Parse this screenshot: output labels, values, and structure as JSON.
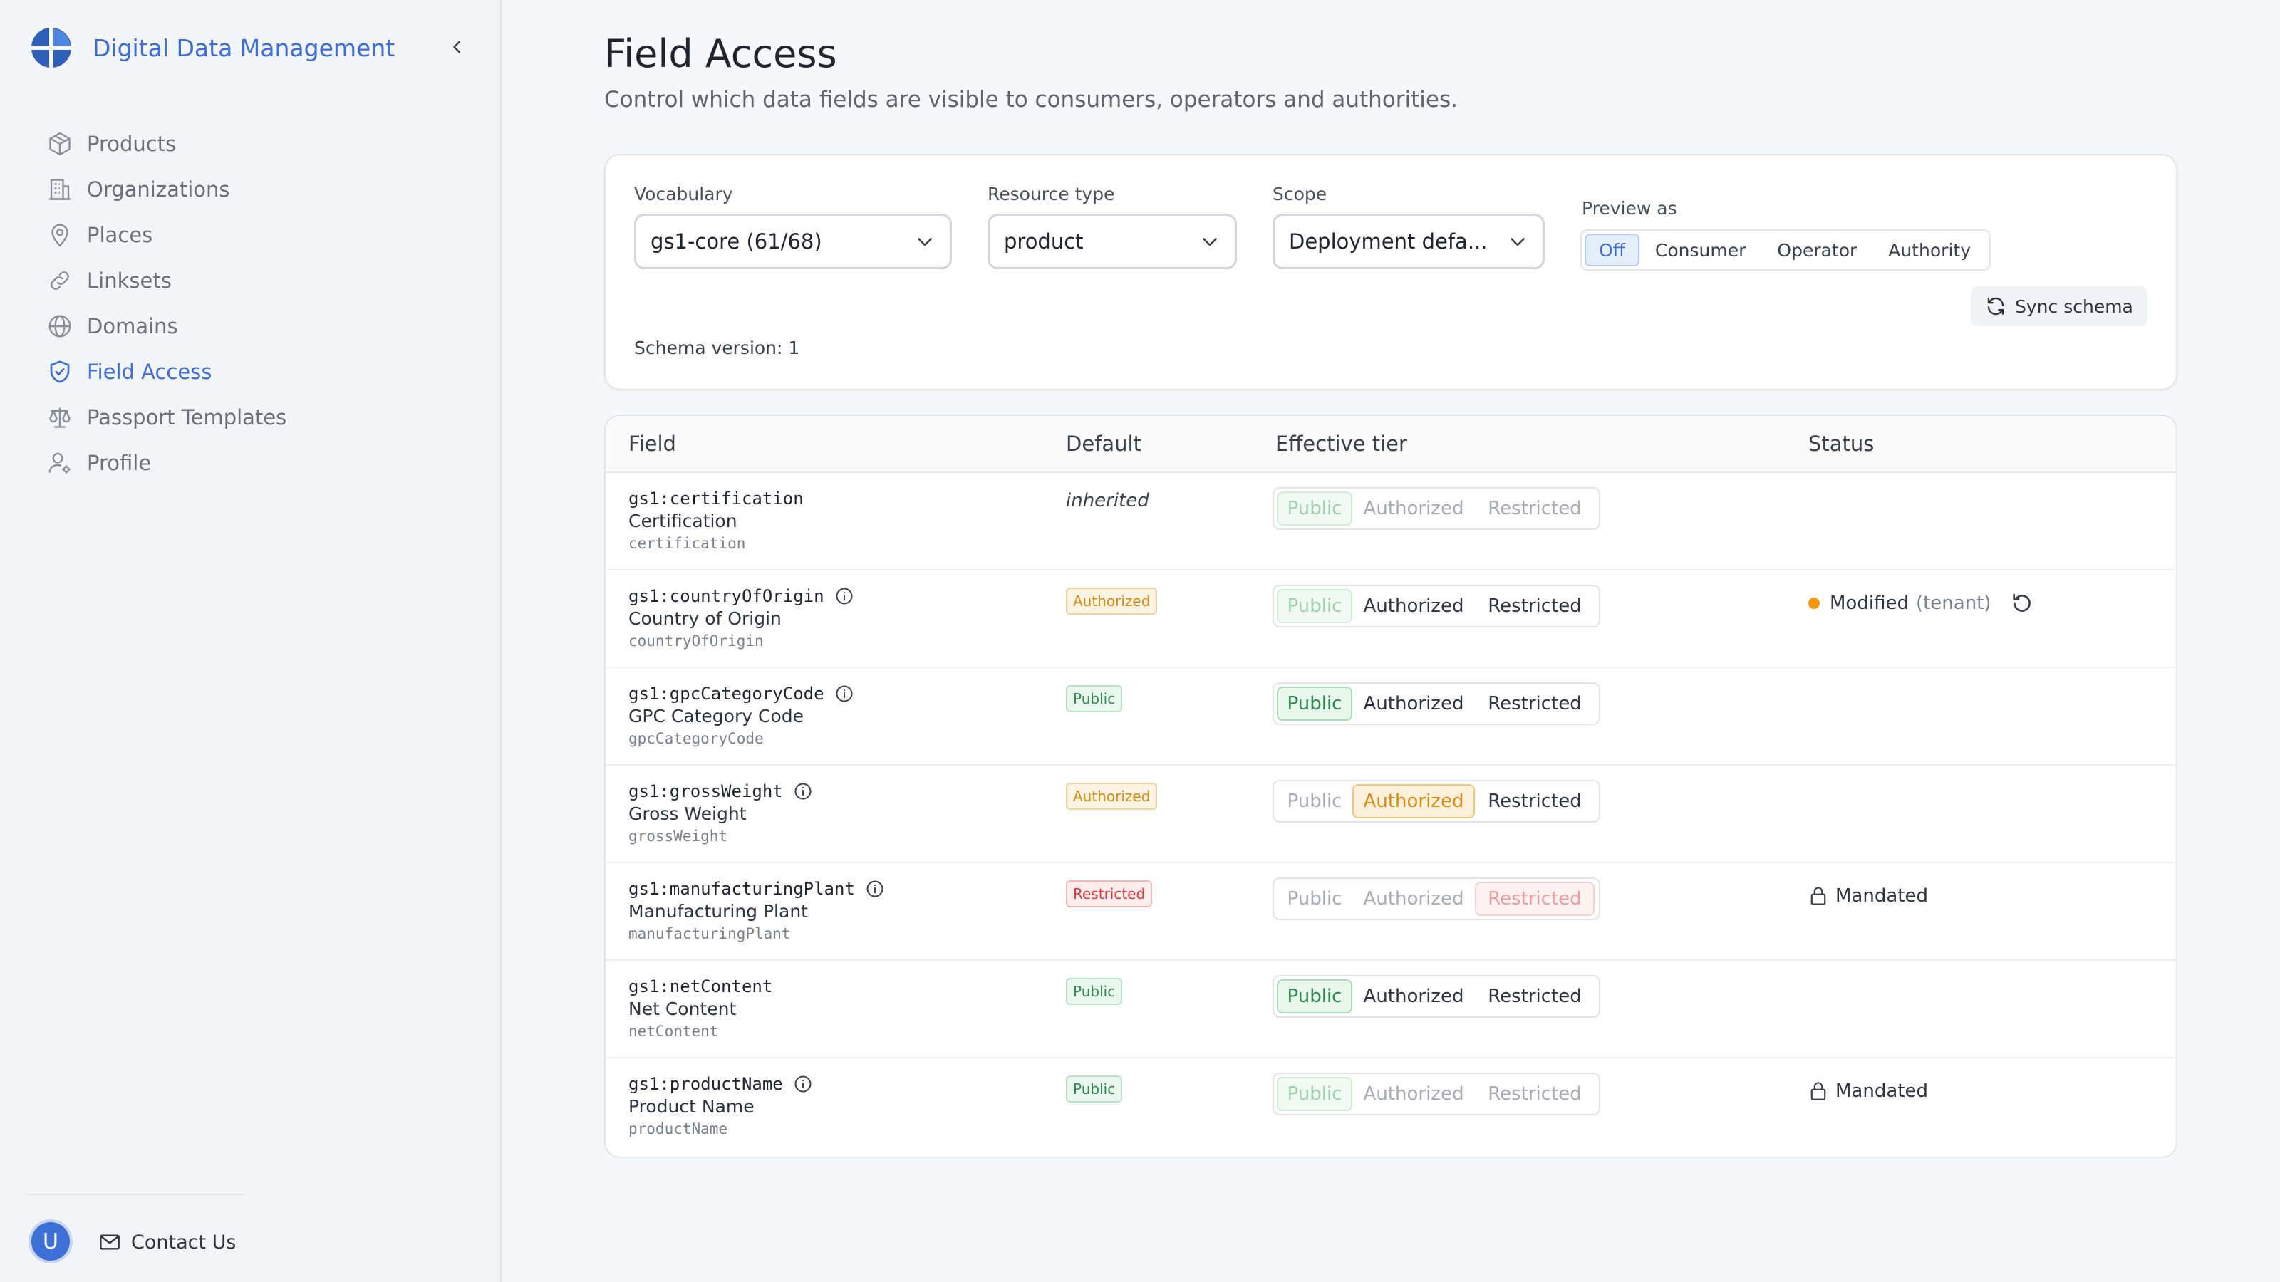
{
  "app": {
    "name": "Digital Data Management",
    "brand_color": "#3d6fd6"
  },
  "sidebar": {
    "items": [
      {
        "label": "Products",
        "icon": "box-icon",
        "active": false
      },
      {
        "label": "Organizations",
        "icon": "building-icon",
        "active": false
      },
      {
        "label": "Places",
        "icon": "map-pin-icon",
        "active": false
      },
      {
        "label": "Linksets",
        "icon": "link-icon",
        "active": false
      },
      {
        "label": "Domains",
        "icon": "globe-icon",
        "active": false
      },
      {
        "label": "Field Access",
        "icon": "shield-check-icon",
        "active": true
      },
      {
        "label": "Passport Templates",
        "icon": "scale-icon",
        "active": false
      },
      {
        "label": "Profile",
        "icon": "user-gear-icon",
        "active": false
      }
    ],
    "avatar_initial": "U",
    "contact_label": "Contact Us"
  },
  "page": {
    "title": "Field Access",
    "subtitle": "Control which data fields are visible to consumers, operators and authorities."
  },
  "filters": {
    "vocabulary_label": "Vocabulary",
    "vocabulary_value": "gs1-core (61/68)",
    "resource_type_label": "Resource type",
    "resource_type_value": "product",
    "scope_label": "Scope",
    "scope_value": "Deployment defa...",
    "preview_label": "Preview as",
    "preview_options": [
      "Off",
      "Consumer",
      "Operator",
      "Authority"
    ],
    "preview_selected": "Off",
    "sync_label": "Sync schema",
    "schema_version": "Schema version: 1"
  },
  "table": {
    "headers": {
      "field": "Field",
      "default": "Default",
      "effective_tier": "Effective tier",
      "status": "Status"
    },
    "tier_options": [
      "Public",
      "Authorized",
      "Restricted"
    ],
    "rows": [
      {
        "key": "gs1:certification",
        "label": "Certification",
        "path": "certification",
        "info": false,
        "default_text": "inherited",
        "default_badge": null,
        "tier": "Public",
        "tier_locked": true,
        "status": null
      },
      {
        "key": "gs1:countryOfOrigin",
        "label": "Country of Origin",
        "path": "countryOfOrigin",
        "info": true,
        "default_text": null,
        "default_badge": "Authorized",
        "tier": "Public",
        "tier_locked": false,
        "tier_dim_selected": true,
        "status": {
          "type": "modified",
          "text": "Modified",
          "sub": "(tenant)"
        }
      },
      {
        "key": "gs1:gpcCategoryCode",
        "label": "GPC Category Code",
        "path": "gpcCategoryCode",
        "info": true,
        "default_text": null,
        "default_badge": "Public",
        "tier": "Public",
        "tier_locked": false,
        "status": null
      },
      {
        "key": "gs1:grossWeight",
        "label": "Gross Weight",
        "path": "grossWeight",
        "info": true,
        "default_text": null,
        "default_badge": "Authorized",
        "tier": "Authorized",
        "tier_locked": false,
        "public_disabled": true,
        "status": null
      },
      {
        "key": "gs1:manufacturingPlant",
        "label": "Manufacturing Plant",
        "path": "manufacturingPlant",
        "info": true,
        "default_text": null,
        "default_badge": "Restricted",
        "tier": "Restricted",
        "tier_locked": true,
        "status": {
          "type": "mandated",
          "text": "Mandated"
        }
      },
      {
        "key": "gs1:netContent",
        "label": "Net Content",
        "path": "netContent",
        "info": false,
        "default_text": null,
        "default_badge": "Public",
        "tier": "Public",
        "tier_locked": false,
        "status": null
      },
      {
        "key": "gs1:productName",
        "label": "Product Name",
        "path": "productName",
        "info": true,
        "default_text": null,
        "default_badge": "Public",
        "tier": "Public",
        "tier_locked": true,
        "status": {
          "type": "mandated",
          "text": "Mandated"
        }
      }
    ]
  }
}
